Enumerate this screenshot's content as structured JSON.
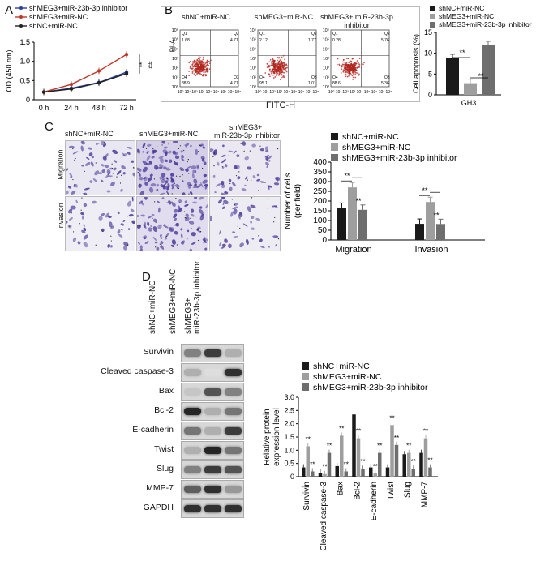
{
  "panels": {
    "A": "A",
    "B": "B",
    "C": "C",
    "D": "D"
  },
  "groups": {
    "nc": "shNC+miR-NC",
    "meg3": "shMEG3+miR-NC",
    "inh": "shMEG3+miR-23b-3p inhibitor",
    "inh_line1": "shMEG3+",
    "inh_line2": "miR-23b-3p inhibitor"
  },
  "colors": {
    "nc": "#1a1a1a",
    "meg3": "#9e9e9e",
    "inh": "#6e6e6e",
    "lineA_inh": "#2b3fa0",
    "lineA_meg3": "#c0392b",
    "lineA_nc": "#222222",
    "cells": "#4a3a9a",
    "dots": "#b0241c"
  },
  "panel_b": {
    "xlabel": "FITC-H",
    "ylabel": "PI-A",
    "ticks_y": [
      "10⁶",
      "10⁵",
      "10⁴",
      "10³",
      "10²",
      "10¹",
      "10⁰"
    ],
    "ticks_x": "10⁰ 10¹ 10² 10³ 10⁴ 10⁵ 10⁶ 10⁷ 10⁸",
    "plots": [
      {
        "title": "shNC+miR-NC",
        "q1": "Q1",
        "q1v": "1.68",
        "q2": "Q2",
        "q2v": "4.71",
        "q3": "Q3",
        "q3v": "4.71",
        "q4": "Q4",
        "q4v": "88.9"
      },
      {
        "title": "shMEG3+miR-NC",
        "q1": "Q1",
        "q1v": "2.12",
        "q2": "Q2",
        "q2v": "1.77",
        "q3": "Q3",
        "q3v": "1.01",
        "q4": "Q4",
        "q4v": "95.1"
      },
      {
        "title": "shMEG3+ miR-23b-3p inhibitor",
        "q1": "Q1",
        "q1v": "0.28",
        "q2": "Q2",
        "q2v": "5.76",
        "q3": "Q3",
        "q3v": "5.36",
        "q4": "Q4",
        "q4v": "88.6"
      }
    ]
  },
  "panel_c": {
    "row_labels": [
      "Migration",
      "Invasion"
    ]
  },
  "panel_d": {
    "proteins": [
      "Survivin",
      "Cleaved caspase-3",
      "Bax",
      "Bcl-2",
      "E-cadherin",
      "Twist",
      "Slug",
      "MMP-7",
      "GAPDH"
    ]
  },
  "chart_data": [
    {
      "type": "line",
      "ylabel": "OD (450 nm)",
      "categories": [
        "0 h",
        "24 h",
        "48 h",
        "72 h"
      ],
      "ylim": [
        0,
        1.5
      ],
      "yticks": [
        "0",
        "0.5",
        "1.0",
        "1.5"
      ],
      "series": [
        {
          "name": "shMEG3+miR-23b-3p inhibitor",
          "values": [
            0.2,
            0.3,
            0.45,
            0.72
          ]
        },
        {
          "name": "shMEG3+miR-NC",
          "values": [
            0.2,
            0.4,
            0.75,
            1.18
          ]
        },
        {
          "name": "shNC+miR-NC",
          "values": [
            0.2,
            0.28,
            0.44,
            0.68
          ]
        }
      ],
      "annotations": [
        "**",
        "##"
      ]
    },
    {
      "type": "bar",
      "ylabel": "Cell apoptosis (%)",
      "categories": [
        "GH3"
      ],
      "ylim": [
        0,
        15
      ],
      "yticks": [
        "0",
        "5",
        "10",
        "15"
      ],
      "series": [
        {
          "name": "shNC+miR-NC",
          "values": [
            8.8
          ]
        },
        {
          "name": "shMEG3+miR-NC",
          "values": [
            2.8
          ]
        },
        {
          "name": "shMEG3+miR-23b-3p inhibitor",
          "values": [
            11.9
          ]
        }
      ],
      "annotations": [
        "**",
        "**"
      ]
    },
    {
      "type": "bar",
      "ylabel": "Number of cells (per field)",
      "categories": [
        "Migration",
        "Invasion"
      ],
      "ylim": [
        0,
        400
      ],
      "yticks": [
        "0",
        "50",
        "100",
        "150",
        "200",
        "250",
        "300",
        "350",
        "400"
      ],
      "series": [
        {
          "name": "shNC+miR-NC",
          "values": [
            165,
            83
          ]
        },
        {
          "name": "shMEG3+miR-NC",
          "values": [
            270,
            195
          ]
        },
        {
          "name": "shMEG3+miR-23b-3p inhibitor",
          "values": [
            155,
            82
          ]
        }
      ],
      "annotations": [
        "**",
        "**",
        "**",
        "**"
      ]
    },
    {
      "type": "bar",
      "ylabel": "Relative protein expression level",
      "categories": [
        "Survivin",
        "Cleaved caspase-3",
        "Bax",
        "Bcl-2",
        "E-cadherin",
        "Twist",
        "Slug",
        "MMP-7"
      ],
      "ylim": [
        0,
        3
      ],
      "yticks": [
        "0",
        "0.5",
        "1.0",
        "1.5",
        "2.0",
        "2.5",
        "3.0"
      ],
      "series": [
        {
          "name": "shNC+miR-NC",
          "values": [
            0.35,
            0.15,
            0.4,
            2.35,
            0.35,
            0.35,
            0.85,
            0.9
          ]
        },
        {
          "name": "shMEG3+miR-NC",
          "values": [
            1.15,
            0.1,
            1.55,
            1.45,
            0.12,
            1.95,
            0.9,
            1.45
          ]
        },
        {
          "name": "shMEG3+miR-23b-3p inhibitor",
          "values": [
            0.2,
            0.9,
            0.2,
            0.3,
            0.9,
            1.2,
            0.3,
            0.35
          ]
        }
      ],
      "annotations": [
        "**"
      ]
    }
  ]
}
